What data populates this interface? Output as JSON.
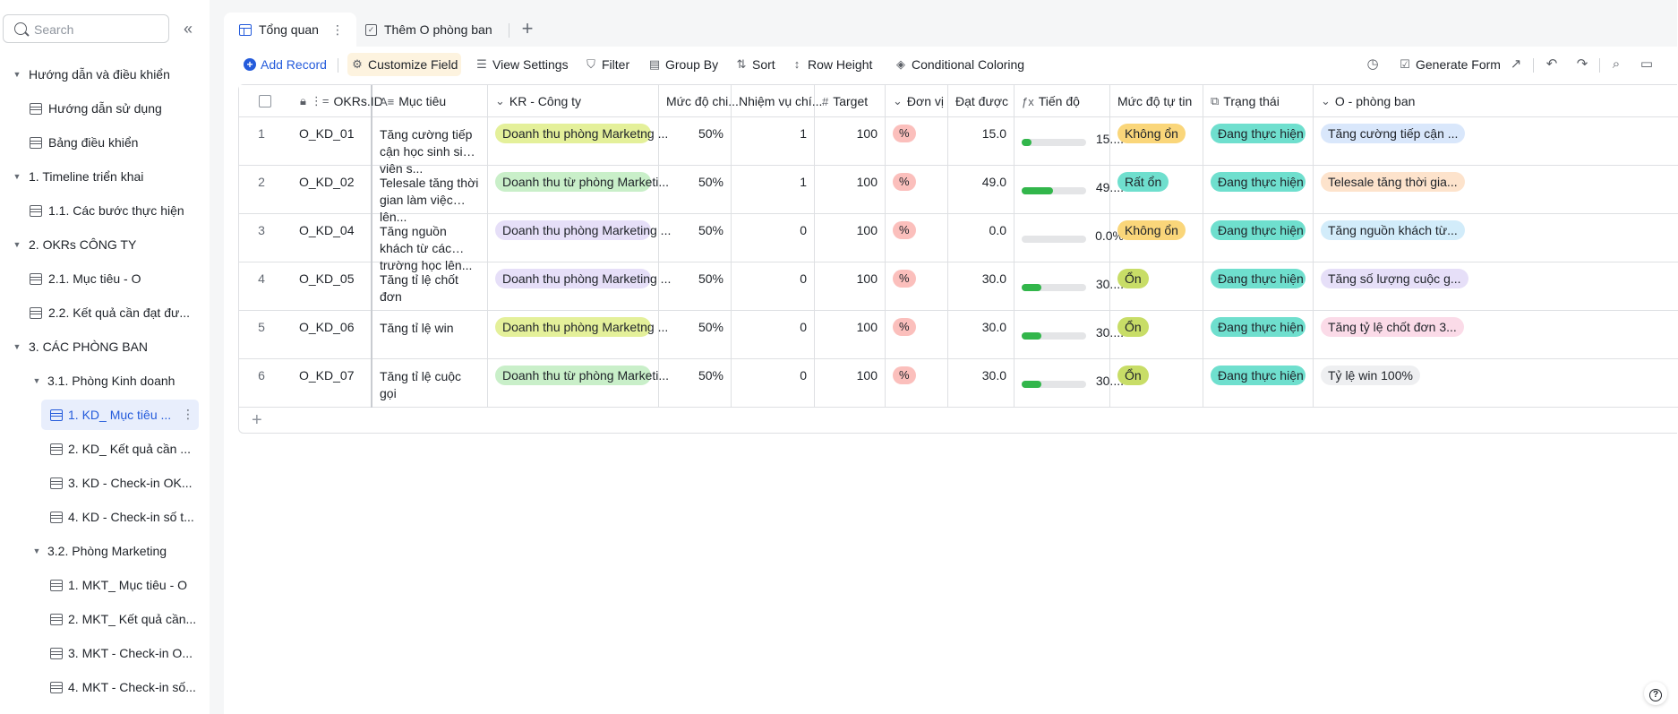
{
  "sidebar": {
    "search_placeholder": "Search",
    "collapse_icon": "double-chevron-left-icon",
    "items": [
      {
        "label": "Hướng dẫn và điều khiển",
        "type": "folder"
      },
      {
        "label": "Hướng dẫn sử dụng",
        "type": "table"
      },
      {
        "label": "Bảng điều khiển",
        "type": "table"
      },
      {
        "label": "1. Timeline triển khai",
        "type": "folder"
      },
      {
        "label": "1.1. Các bước thực hiện",
        "type": "table"
      },
      {
        "label": "2. OKRs CÔNG TY",
        "type": "folder"
      },
      {
        "label": "2.1. Mục tiêu - O",
        "type": "table"
      },
      {
        "label": "2.2. Kết quả cần đạt đư...",
        "type": "table"
      },
      {
        "label": "3. CÁC PHÒNG BAN",
        "type": "folder"
      },
      {
        "label": "3.1. Phòng Kinh doanh",
        "type": "folder"
      },
      {
        "label": "1. KD_ Mục tiêu ...",
        "type": "table",
        "active": true
      },
      {
        "label": "2. KD_ Kết quả cần ...",
        "type": "table"
      },
      {
        "label": "3. KD - Check-in OK...",
        "type": "table"
      },
      {
        "label": "4. KD - Check-in số t...",
        "type": "table"
      },
      {
        "label": "3.2. Phòng Marketing",
        "type": "folder"
      },
      {
        "label": "1. MKT_ Mục tiêu - O",
        "type": "table"
      },
      {
        "label": "2. MKT_ Kết quả cần...",
        "type": "table"
      },
      {
        "label": "3. MKT - Check-in O...",
        "type": "table"
      },
      {
        "label": "4. MKT - Check-in số...",
        "type": "table"
      }
    ]
  },
  "tabs": [
    {
      "label": "Tổng quan",
      "active": true
    },
    {
      "label": "Thêm O phòng ban",
      "active": false
    }
  ],
  "toolbar": {
    "add_record": "Add Record",
    "customize_field": "Customize Field",
    "view_settings": "View Settings",
    "filter": "Filter",
    "group_by": "Group By",
    "sort": "Sort",
    "row_height": "Row Height",
    "conditional_coloring": "Conditional Coloring",
    "generate_form": "Generate Form"
  },
  "table": {
    "columns": {
      "id": "OKRs.ID",
      "goal": "Mục tiêu",
      "kr": "KR - Công ty",
      "weight": "Mức độ chi...",
      "tasks": "Nhiệm vụ chí...",
      "target": "Target",
      "unit": "Đơn vị",
      "achieved": "Đạt được",
      "progress": "Tiến độ",
      "confidence": "Mức độ tự tin",
      "status": "Trạng thái",
      "dept": "O - phòng ban"
    },
    "rows": [
      {
        "n": "1",
        "id": "O_KD_01",
        "goal": "Tăng cường tiếp cận học sinh sinh viên s...",
        "kr": "Doanh thu phòng Marketng ...",
        "kr_color": "#e4f09a",
        "weight": "50%",
        "tasks": "1",
        "target": "100",
        "unit": "%",
        "achieved": "15.0",
        "progress": 0.15,
        "progress_label": "15....",
        "confidence": "Không ổn",
        "conf_color": "#fad67a",
        "status": "Đang thực hiện",
        "dept": "Tăng cường tiếp cận ...",
        "dept_color": "#d9e7fb"
      },
      {
        "n": "2",
        "id": "O_KD_02",
        "goal": "Telesale tăng thời gian làm việc lên...",
        "kr": "Doanh thu từ phòng Marketi...",
        "kr_color": "#c9efc9",
        "weight": "50%",
        "tasks": "1",
        "target": "100",
        "unit": "%",
        "achieved": "49.0",
        "progress": 0.49,
        "progress_label": "49....",
        "confidence": "Rất ổn",
        "conf_color": "#6fdfce",
        "status": "Đang thực hiện",
        "dept": "Telesale tăng thời gia...",
        "dept_color": "#fde3cc"
      },
      {
        "n": "3",
        "id": "O_KD_04",
        "goal": "Tăng nguồn khách từ các trường học lên...",
        "kr": "Doanh thu phòng Marketing ...",
        "kr_color": "#e6dff8",
        "weight": "50%",
        "tasks": "0",
        "target": "100",
        "unit": "%",
        "achieved": "0.0",
        "progress": 0.0,
        "progress_label": "0.0%",
        "confidence": "Không ổn",
        "conf_color": "#fad67a",
        "status": "Đang thực hiện",
        "dept": "Tăng nguồn khách từ...",
        "dept_color": "#d2ecfa"
      },
      {
        "n": "4",
        "id": "O_KD_05",
        "goal": "Tăng tỉ lệ chốt đơn",
        "kr": "Doanh thu phòng Marketing ...",
        "kr_color": "#e6dff8",
        "weight": "50%",
        "tasks": "0",
        "target": "100",
        "unit": "%",
        "achieved": "30.0",
        "progress": 0.3,
        "progress_label": "30....",
        "confidence": "Ổn",
        "conf_color": "#c8dd67",
        "status": "Đang thực hiện",
        "dept": "Tăng số lượng cuộc g...",
        "dept_color": "#e6dff8"
      },
      {
        "n": "5",
        "id": "O_KD_06",
        "goal": "Tăng tỉ lệ win",
        "kr": "Doanh thu phòng Marketng ...",
        "kr_color": "#e4f09a",
        "weight": "50%",
        "tasks": "0",
        "target": "100",
        "unit": "%",
        "achieved": "30.0",
        "progress": 0.3,
        "progress_label": "30....",
        "confidence": "Ổn",
        "conf_color": "#c8dd67",
        "status": "Đang thực hiện",
        "dept": "Tăng tỷ lệ chốt đơn 3...",
        "dept_color": "#fbdbe8"
      },
      {
        "n": "6",
        "id": "O_KD_07",
        "goal": "Tăng tỉ lệ cuộc gọi",
        "kr": "Doanh thu từ phòng Marketi...",
        "kr_color": "#c9efc9",
        "weight": "50%",
        "tasks": "0",
        "target": "100",
        "unit": "%",
        "achieved": "30.0",
        "progress": 0.3,
        "progress_label": "30....",
        "confidence": "Ổn",
        "conf_color": "#c8dd67",
        "status": "Đang thực hiện",
        "dept": "Tỷ lệ win 100%",
        "dept_color": "#eeeff1"
      }
    ]
  },
  "colors": {
    "accent": "#245bdb",
    "status_tag": "#6fdfce",
    "unit_tag": "#fbbfbc",
    "progress_fill": "#32b64b"
  }
}
